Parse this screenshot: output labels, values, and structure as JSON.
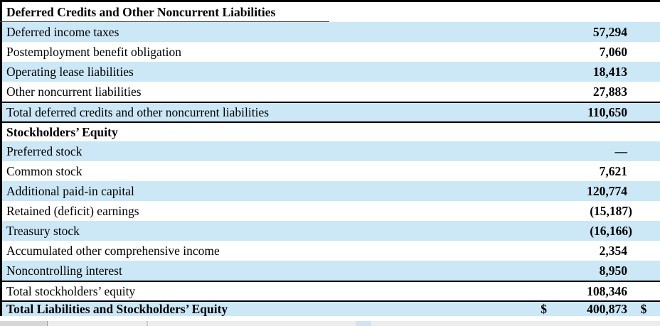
{
  "document": {
    "type": "financial-statement-table",
    "colors": {
      "row_highlight_blue": "#cce7f6",
      "border_black": "#000000",
      "text": "#000000",
      "bottom_strip_gray": "#ededed"
    }
  },
  "table": {
    "rows": [
      {
        "type": "section-header",
        "shade": "white",
        "label": "Deferred Credits and Other Noncurrent Liabilities",
        "value": ""
      },
      {
        "type": "item",
        "shade": "blue",
        "label": "Deferred income taxes",
        "value": "57,294"
      },
      {
        "type": "item",
        "shade": "white",
        "label": "Postemployment benefit obligation",
        "value": "7,060"
      },
      {
        "type": "item",
        "shade": "blue",
        "label": "Operating lease liabilities",
        "value": "18,413"
      },
      {
        "type": "item",
        "shade": "white",
        "label": "Other noncurrent liabilities",
        "value": "27,883"
      },
      {
        "type": "total",
        "shade": "blue",
        "border_top": true,
        "label": "Total deferred credits and other noncurrent liabilities",
        "value": "110,650"
      },
      {
        "type": "section-header",
        "shade": "white",
        "border_top": true,
        "label": "Stockholders’ Equity",
        "value": ""
      },
      {
        "type": "item",
        "shade": "blue",
        "label": "Preferred stock",
        "value": "—"
      },
      {
        "type": "item",
        "shade": "white",
        "label": "Common stock",
        "value": "7,621"
      },
      {
        "type": "item",
        "shade": "blue",
        "label": "Additional paid-in capital",
        "value": "120,774"
      },
      {
        "type": "item",
        "shade": "white",
        "label": "Retained (deficit) earnings",
        "value": "(15,187)"
      },
      {
        "type": "item",
        "shade": "blue",
        "label": "Treasury stock",
        "value": "(16,166)"
      },
      {
        "type": "item",
        "shade": "white",
        "label": "Accumulated other comprehensive income",
        "value": "2,354"
      },
      {
        "type": "item",
        "shade": "blue",
        "label": "Noncontrolling interest",
        "value": "8,950"
      },
      {
        "type": "total",
        "shade": "white",
        "border_top": true,
        "label": "Total stockholders’ equity",
        "value": "108,346"
      },
      {
        "type": "grand-total",
        "shade": "blue",
        "border_top": true,
        "label": "Total Liabilities and Stockholders’ Equity",
        "currency": "$",
        "value": "400,873",
        "currency2": "$"
      }
    ]
  }
}
